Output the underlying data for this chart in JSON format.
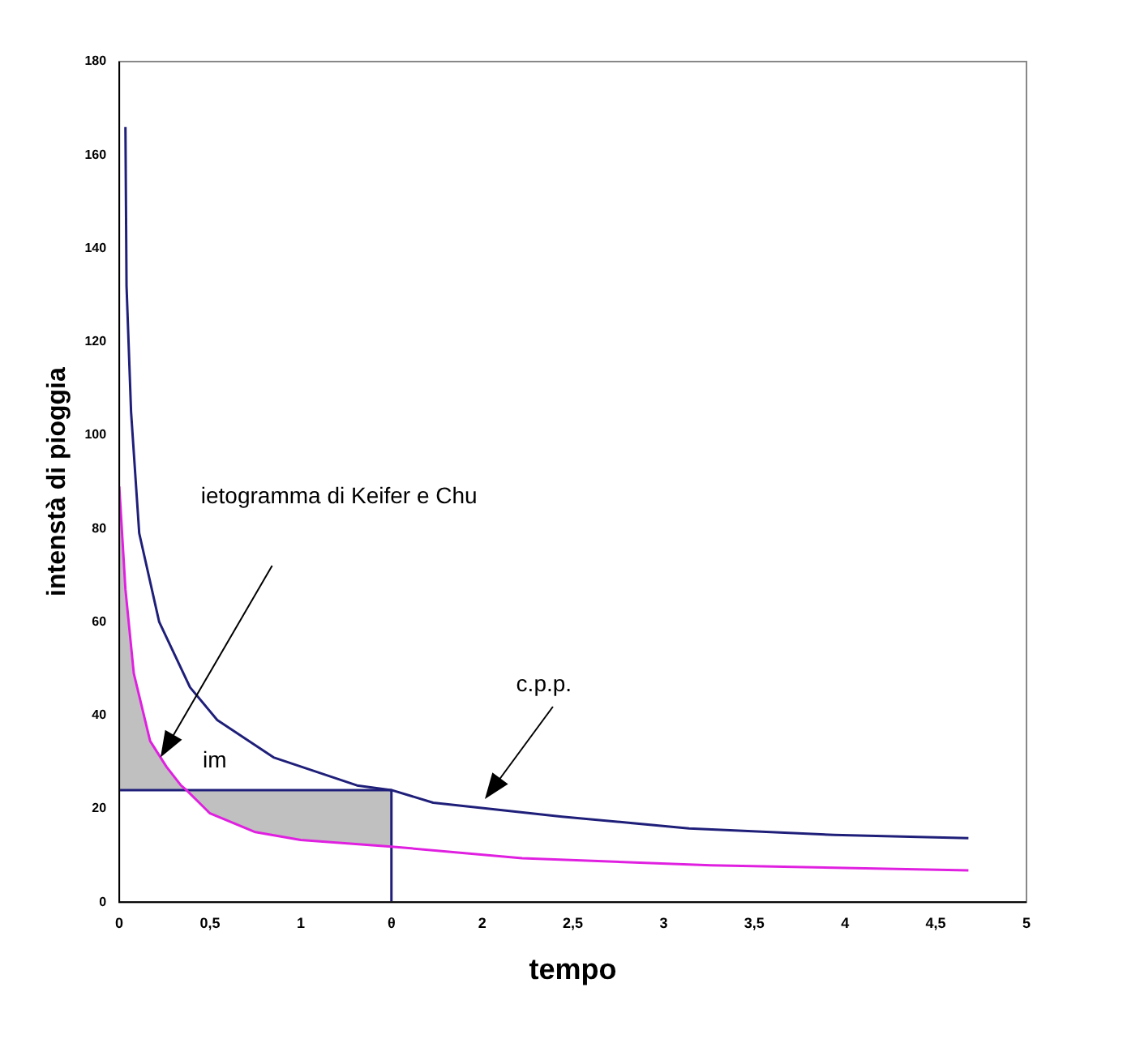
{
  "chart_data": {
    "type": "line",
    "xlabel": "tempo",
    "ylabel": "intenstà di pioggia",
    "xlim": [
      0,
      5
    ],
    "ylim": [
      0,
      180
    ],
    "xticks": [
      0,
      {
        "value": 0.5,
        "label": "0,5"
      },
      1,
      {
        "value": 1.5,
        "label": "θ"
      },
      2,
      {
        "value": 2.5,
        "label": "2,5"
      },
      3,
      {
        "value": 3.5,
        "label": "3,5"
      },
      4,
      {
        "value": 4.5,
        "label": "4,5"
      },
      5
    ],
    "yticks": [
      0,
      20,
      40,
      60,
      80,
      100,
      120,
      140,
      160,
      180
    ],
    "grid": false,
    "legend": false,
    "marker": "none",
    "line_style": "solid",
    "series": [
      {
        "color": "#1f1f7a",
        "x": [
          0.034,
          0.04,
          0.065,
          0.11,
          0.22,
          0.39,
          0.54,
          0.85,
          1.31,
          1.5,
          1.73,
          2.44,
          3.14,
          3.94,
          4.68
        ],
        "values": [
          166,
          132,
          105,
          79,
          60,
          46,
          39,
          31,
          25,
          24,
          21.3,
          18.3,
          15.8,
          14.4,
          13.7
        ]
      },
      {
        "color": "#e020e0",
        "x": [
          0,
          0.034,
          0.08,
          0.17,
          0.26,
          0.34,
          0.37,
          0.5,
          0.75,
          1,
          1.5,
          2.22,
          3.26,
          4.68
        ],
        "values": [
          89,
          67,
          49,
          34.5,
          29,
          25,
          24,
          19,
          15,
          13.3,
          11.9,
          9.4,
          7.9,
          6.8
        ],
        "lower": [
          24,
          24,
          24,
          24,
          24,
          24,
          24,
          19,
          15,
          13.3,
          11.9,
          null,
          null,
          null
        ],
        "upper": [
          89,
          67,
          49,
          34.5,
          29,
          25,
          24,
          24,
          24,
          24,
          24,
          null,
          null,
          null
        ]
      },
      {
        "color": "#1f1f7a",
        "x": [
          0,
          1.5,
          1.5
        ],
        "values": [
          24,
          24,
          0
        ]
      }
    ],
    "annotations": [
      "ietogramma di Keifer e Chu",
      "c.p.p.",
      "im"
    ]
  }
}
